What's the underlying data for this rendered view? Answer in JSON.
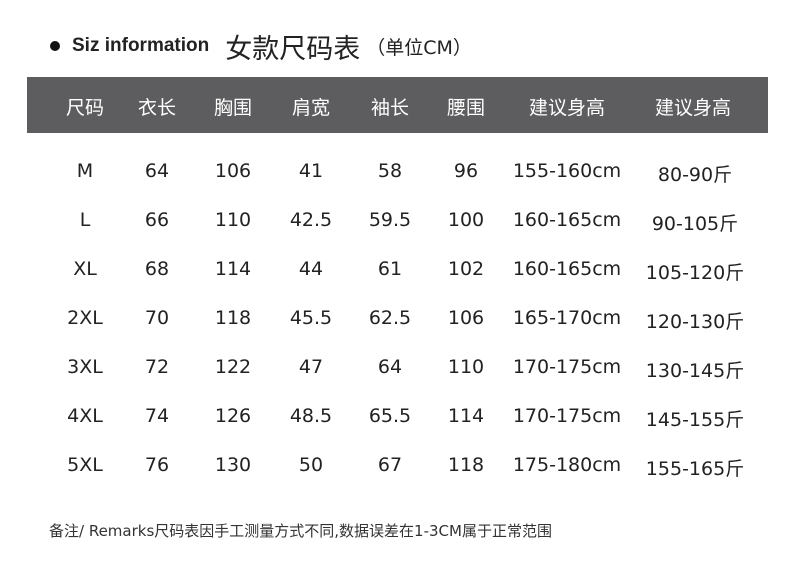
{
  "title": {
    "en": "Siz information",
    "cn": "女款尺码表",
    "unit": "（单位CM）"
  },
  "columns": [
    "尺码",
    "衣长",
    "胸围",
    "肩宽",
    "袖长",
    "腰围",
    "建议身高",
    "建议身高"
  ],
  "rows": [
    [
      "M",
      "64",
      "106",
      "41",
      "58",
      "96",
      "155-160cm",
      "80-90斤"
    ],
    [
      "L",
      "66",
      "110",
      "42.5",
      "59.5",
      "100",
      "160-165cm",
      "90-105斤"
    ],
    [
      "XL",
      "68",
      "114",
      "44",
      "61",
      "102",
      "160-165cm",
      "105-120斤"
    ],
    [
      "2XL",
      "70",
      "118",
      "45.5",
      "62.5",
      "106",
      "165-170cm",
      "120-130斤"
    ],
    [
      "3XL",
      "72",
      "122",
      "47",
      "64",
      "110",
      "170-175cm",
      "130-145斤"
    ],
    [
      "4XL",
      "74",
      "126",
      "48.5",
      "65.5",
      "114",
      "170-175cm",
      "145-155斤"
    ],
    [
      "5XL",
      "76",
      "130",
      "50",
      "67",
      "118",
      "175-180cm",
      "155-165斤"
    ]
  ],
  "note": "备注/ Remarks尺码表因手工测量方式不同,数据误差在1-3CM属于正常范围",
  "colors": {
    "header_bg": "#5d5d5f",
    "header_text": "#ffffff"
  }
}
